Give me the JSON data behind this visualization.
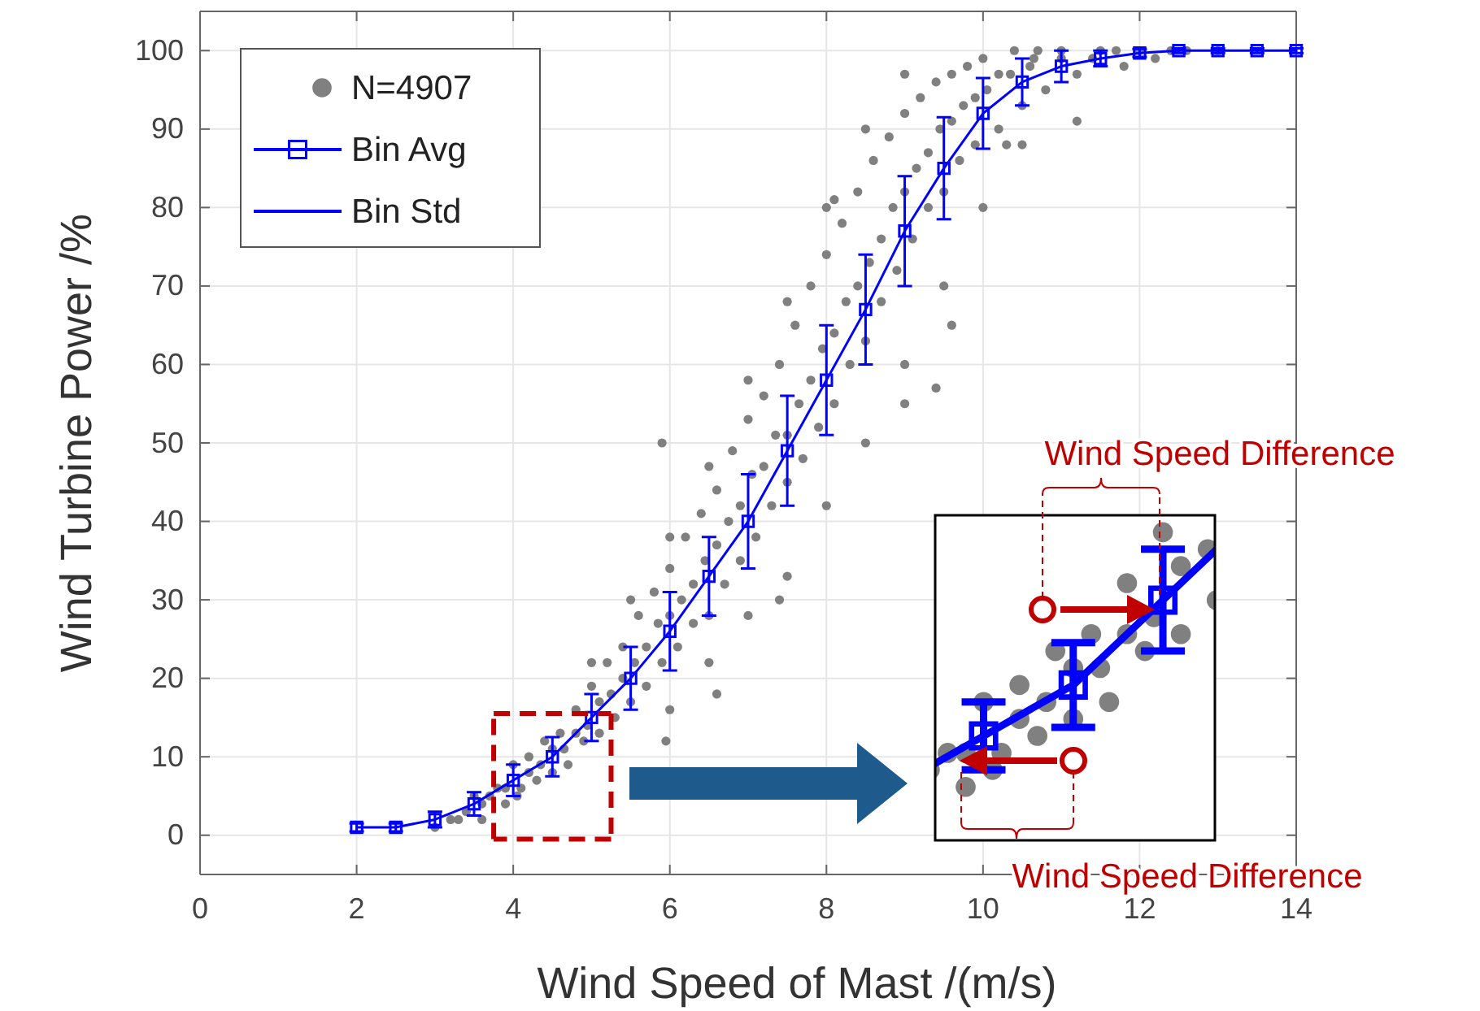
{
  "chart_data": {
    "type": "line",
    "xlabel": "Wind Speed of Mast /(m/s)",
    "ylabel": "Wind Turbine Power /%",
    "xlim": [
      0,
      14
    ],
    "ylim": [
      -5,
      105
    ],
    "xticks": [
      0,
      2,
      4,
      6,
      8,
      10,
      12,
      14
    ],
    "yticks": [
      0,
      10,
      20,
      30,
      40,
      50,
      60,
      70,
      80,
      90,
      100
    ],
    "grid": true,
    "legend": "top left",
    "annotations": [
      "Wind Speed Difference",
      "Wind Speed Difference"
    ],
    "series": [
      {
        "name": "N=4907",
        "type": "scatter",
        "color": "#808080",
        "marker": "circle",
        "x": [
          3.0,
          3.2,
          3.4,
          3.5,
          3.6,
          3.7,
          3.8,
          3.9,
          4.0,
          4.1,
          4.2,
          4.3,
          4.4,
          4.5,
          4.6,
          4.7,
          4.8,
          4.9,
          5.0,
          5.1,
          5.2,
          5.3,
          5.4,
          5.5,
          5.6,
          5.7,
          5.8,
          5.9,
          6.0,
          6.1,
          6.2,
          6.3,
          6.4,
          6.5,
          6.6,
          6.7,
          6.8,
          6.9,
          7.0,
          7.1,
          7.2,
          7.3,
          7.4,
          7.5,
          7.6,
          7.7,
          7.8,
          7.9,
          8.0,
          8.1,
          8.2,
          8.3,
          8.4,
          8.5,
          8.6,
          8.7,
          8.8,
          8.9,
          9.0,
          9.1,
          9.2,
          9.3,
          9.4,
          9.5,
          9.6,
          9.7,
          9.8,
          9.9,
          10.0,
          10.2,
          10.4,
          10.5,
          10.7,
          10.8,
          11.0,
          11.2,
          11.5,
          11.8,
          12.2,
          12.6,
          13.0,
          5.9,
          5.95,
          9.4,
          9.6,
          9.0,
          10.3,
          11.2,
          8.1,
          6.6,
          7.4,
          3.3,
          3.6,
          3.9,
          4.2,
          4.5,
          4.8,
          5.1,
          5.4,
          5.7,
          6.0,
          6.3,
          6.6,
          6.9,
          7.2,
          7.5,
          7.8,
          8.1,
          8.4,
          8.7,
          9.0,
          9.3,
          9.6,
          9.9,
          10.2,
          10.6,
          11.0,
          11.4,
          11.7,
          12.0,
          12.4,
          4.05,
          4.35,
          4.65,
          4.95,
          5.25,
          5.55,
          5.85,
          6.15,
          6.45,
          6.75,
          7.05,
          7.35,
          7.65,
          7.95,
          8.25,
          8.55,
          8.85,
          9.15,
          9.45,
          9.75,
          10.05,
          10.35,
          10.65,
          5.0,
          5.5,
          6.0,
          6.5,
          7.0,
          7.5,
          8.0,
          8.5,
          9.0,
          6.0,
          6.5,
          7.0,
          7.5,
          8.0,
          8.5,
          9.0,
          9.5,
          10.0,
          10.5
        ],
        "values": [
          1,
          2,
          3,
          5,
          2,
          5,
          6,
          4,
          9,
          6,
          10,
          7,
          12,
          8,
          13,
          9,
          16,
          12,
          19,
          13,
          22,
          15,
          24,
          17,
          28,
          19,
          31,
          22,
          34,
          24,
          38,
          27,
          41,
          28,
          44,
          32,
          49,
          35,
          53,
          38,
          56,
          42,
          60,
          45,
          65,
          48,
          70,
          52,
          74,
          55,
          78,
          60,
          82,
          63,
          86,
          68,
          89,
          72,
          92,
          76,
          94,
          80,
          96,
          82,
          97,
          86,
          98,
          88,
          99,
          90,
          100,
          93,
          100,
          95,
          100,
          97,
          100,
          98,
          99,
          100,
          100,
          50,
          12,
          57,
          65,
          55,
          88,
          91,
          81,
          18,
          30,
          2,
          4,
          6,
          8,
          11,
          13,
          17,
          20,
          24,
          28,
          32,
          37,
          42,
          47,
          51,
          58,
          64,
          70,
          76,
          82,
          87,
          91,
          94,
          97,
          98,
          99,
          99,
          100,
          100,
          100,
          5,
          9,
          11,
          14,
          18,
          22,
          27,
          30,
          35,
          40,
          46,
          51,
          55,
          62,
          68,
          73,
          80,
          85,
          90,
          93,
          95,
          97,
          99,
          22,
          30,
          38,
          47,
          58,
          68,
          80,
          90,
          97,
          16,
          22,
          28,
          33,
          42,
          50,
          60,
          70,
          80,
          88
        ]
      },
      {
        "name": "Bin Avg",
        "type": "scatter",
        "color": "#0000ff",
        "marker": "square",
        "x": [
          2,
          2.5,
          3,
          3.5,
          4,
          4.5,
          5,
          5.5,
          6,
          6.5,
          7,
          7.5,
          8,
          8.5,
          9,
          9.5,
          10,
          10.5,
          11,
          11.5,
          12,
          12.5,
          13,
          13.5,
          14
        ],
        "values": [
          1,
          1,
          2,
          4,
          7,
          10,
          15,
          20,
          26,
          33,
          40,
          49,
          58,
          67,
          77,
          85,
          92,
          96,
          98,
          99,
          99.7,
          100,
          100,
          100,
          100
        ]
      },
      {
        "name": "Bin Std",
        "color": "#0000ff",
        "marker": "none",
        "x": [
          2,
          2.5,
          3,
          3.5,
          4,
          4.5,
          5,
          5.5,
          6,
          6.5,
          7,
          7.5,
          8,
          8.5,
          9,
          9.5,
          10,
          10.5,
          11,
          11.5,
          12,
          12.5,
          13,
          13.5,
          14
        ],
        "values": [
          1,
          1,
          2,
          4,
          7,
          10,
          15,
          20,
          26,
          33,
          40,
          49,
          58,
          67,
          77,
          85,
          92,
          96,
          98,
          99,
          99.7,
          100,
          100,
          100,
          100
        ],
        "errors": [
          0.5,
          0.5,
          1,
          1.5,
          2,
          2.5,
          3,
          4,
          5,
          5,
          6,
          7,
          7,
          7,
          7,
          6.5,
          4.5,
          3,
          2,
          1,
          0.5,
          0.3,
          0.3,
          0.3,
          0.3
        ]
      }
    ]
  }
}
